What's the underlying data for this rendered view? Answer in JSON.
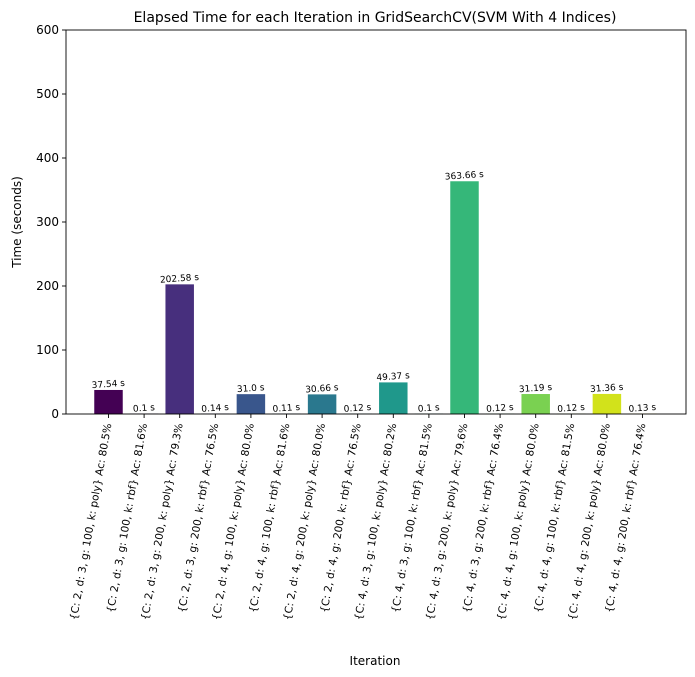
{
  "chart_data": {
    "type": "bar",
    "title": "Elapsed Time for each Iteration in GridSearchCV(SVM With 4 Indices)",
    "xlabel": "Iteration",
    "ylabel": "Time (seconds)",
    "ylim": [
      0,
      600
    ],
    "yticks": [
      0,
      100,
      200,
      300,
      400,
      500,
      600
    ],
    "grid": false,
    "categories": [
      "{C: 2, d: 3, g: 100, k: poly} Ac: 80.5%",
      "{C: 2, d: 3, g: 100, k: rbf} Ac: 81.6%",
      "{C: 2, d: 3, g: 200, k: poly} Ac: 79.3%",
      "{C: 2, d: 3, g: 200, k: rbf} Ac: 76.5%",
      "{C: 2, d: 4, g: 100, k: poly} Ac: 80.0%",
      "{C: 2, d: 4, g: 100, k: rbf} Ac: 81.6%",
      "{C: 2, d: 4, g: 200, k: poly} Ac: 80.0%",
      "{C: 2, d: 4, g: 200, k: rbf} Ac: 76.5%",
      "{C: 4, d: 3, g: 100, k: poly} Ac: 80.2%",
      "{C: 4, d: 3, g: 100, k: rbf} Ac: 81.5%",
      "{C: 4, d: 3, g: 200, k: poly} Ac: 79.6%",
      "{C: 4, d: 3, g: 200, k: rbf} Ac: 76.4%",
      "{C: 4, d: 4, g: 100, k: poly} Ac: 80.0%",
      "{C: 4, d: 4, g: 100, k: rbf} Ac: 81.5%",
      "{C: 4, d: 4, g: 200, k: poly} Ac: 80.0%",
      "{C: 4, d: 4, g: 200, k: rbf} Ac: 76.4%"
    ],
    "values": [
      37.54,
      0.1,
      202.58,
      0.14,
      31.0,
      0.11,
      30.66,
      0.12,
      49.37,
      0.1,
      363.66,
      0.12,
      31.19,
      0.12,
      31.36,
      0.13
    ],
    "data_labels": [
      "37.54 s",
      "0.1 s",
      "202.58 s",
      "0.14 s",
      "31.0 s",
      "0.11 s",
      "30.66 s",
      "0.12 s",
      "49.37 s",
      "0.1 s",
      "363.66 s",
      "0.12 s",
      "31.19 s",
      "0.12 s",
      "31.36 s",
      "0.13 s"
    ],
    "colors": [
      "#440154",
      "#481a6c",
      "#472f7d",
      "#414487",
      "#39568c",
      "#31688e",
      "#2a788e",
      "#23888e",
      "#1f988b",
      "#22a884",
      "#35b779",
      "#54c568",
      "#7ad151",
      "#a5db36",
      "#d2e21b",
      "#fde725"
    ]
  }
}
